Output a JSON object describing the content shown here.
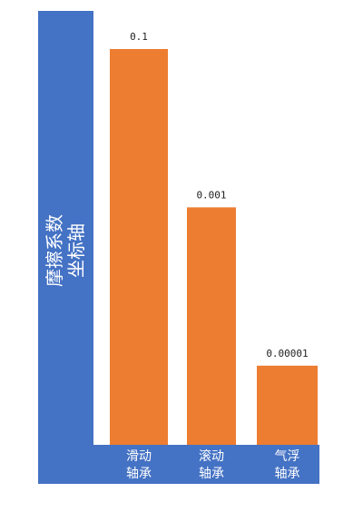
{
  "chart_data": {
    "type": "bar",
    "ylabel": "摩擦系数\n坐标轴",
    "categories": [
      "滑动\n轴承",
      "滚动\n轴承",
      "气浮\n轴承"
    ],
    "values": [
      0.1,
      0.001,
      1e-05
    ],
    "color": "#ed7d31",
    "axis_color": "#4472c4",
    "log_scale": true,
    "ylim": [
      1e-06,
      0.1
    ]
  }
}
